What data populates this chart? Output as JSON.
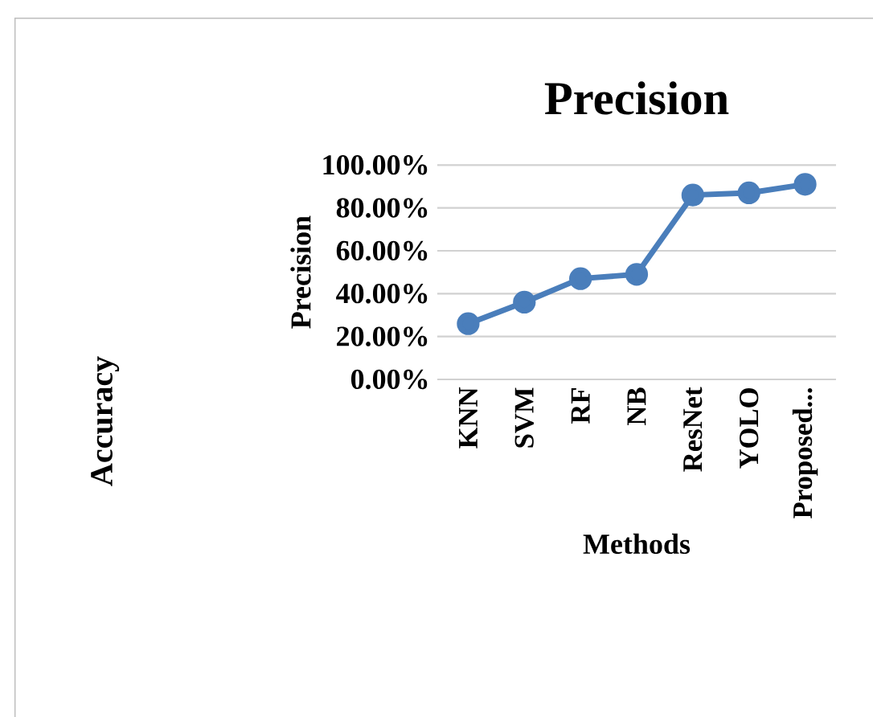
{
  "chart_data": {
    "type": "line",
    "title": "Precision",
    "xlabel": "Methods",
    "ylabel": "Precision",
    "annotations": [
      "Accuracy"
    ],
    "categories": [
      "KNN",
      "SVM",
      "RF",
      "NB",
      "ResNet",
      "YOLO",
      "Proposed..."
    ],
    "series": [
      {
        "color": "#4a7ebb",
        "values": [
          26,
          36,
          47,
          49,
          86,
          87,
          91
        ]
      }
    ],
    "ylim": [
      0,
      100
    ],
    "yticks": [
      {
        "value": 0,
        "label": "0.00%"
      },
      {
        "value": 20,
        "label": "20.00%"
      },
      {
        "value": 40,
        "label": "40.00%"
      },
      {
        "value": 60,
        "label": "60.00%"
      },
      {
        "value": 80,
        "label": "80.00%"
      },
      {
        "value": 100,
        "label": "100.00%"
      }
    ],
    "grid": "y",
    "marker": "circle",
    "line_style": "solid"
  }
}
